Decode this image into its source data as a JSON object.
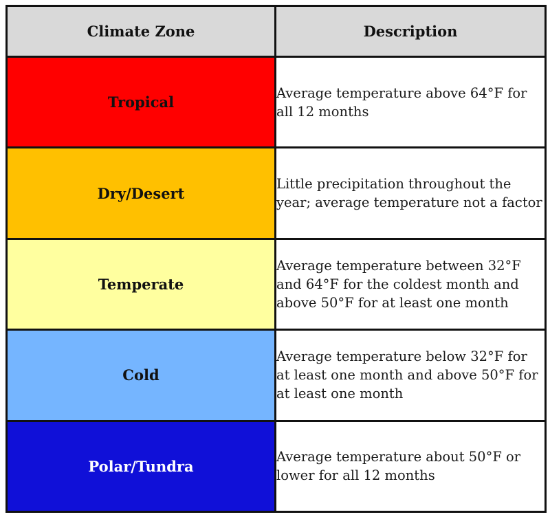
{
  "table": {
    "headers": {
      "zone": "Climate Zone",
      "description": "Description"
    },
    "rows": [
      {
        "zone": "Tropical",
        "description": "Average temperature above 64°F for all 12 months",
        "color": "#ff0000",
        "text_color": "#111111"
      },
      {
        "zone": "Dry/Desert",
        "description": "Little precipitation throughout the year; average temperature not a factor",
        "color": "#ffc000",
        "text_color": "#111111"
      },
      {
        "zone": "Temperate",
        "description": "Average temperature between 32°F and 64°F for the coldest month and above 50°F for at least one month",
        "color": "#ffff9f",
        "text_color": "#111111"
      },
      {
        "zone": "Cold",
        "description": "Average temperature below 32°F for at least one month and above 50°F for at least one month",
        "color": "#75b5ff",
        "text_color": "#111111"
      },
      {
        "zone": "Polar/Tundra",
        "description": "Average temperature about 50°F or lower for all 12 months",
        "color": "#1010d8",
        "text_color": "#ffffff"
      }
    ]
  }
}
